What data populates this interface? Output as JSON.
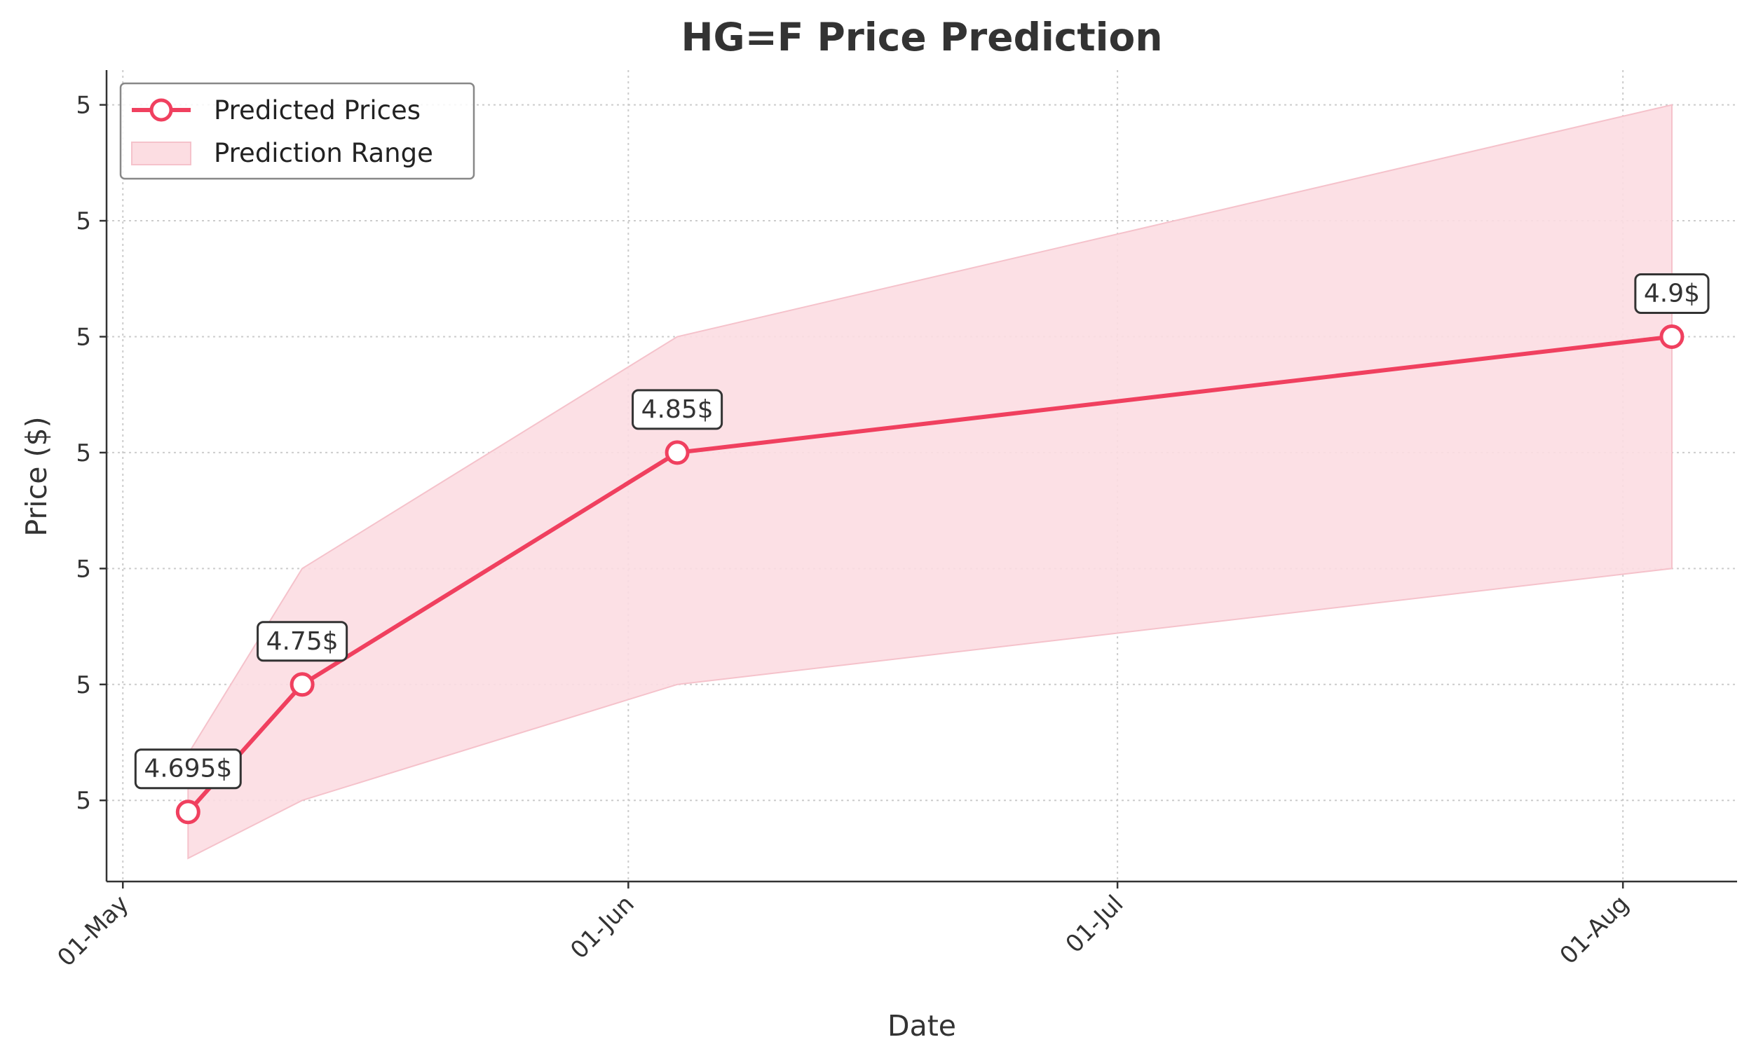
{
  "chart_data": {
    "type": "line",
    "title": "HG=F Price Prediction",
    "xlabel": "Date",
    "ylabel": "Price ($)",
    "x_tick_labels": [
      {
        "date": "2025-05-01",
        "label": "01-May"
      },
      {
        "date": "2025-06-01",
        "label": "01-Jun"
      },
      {
        "date": "2025-07-01",
        "label": "01-Jul"
      },
      {
        "date": "2025-08-01",
        "label": "01-Aug"
      }
    ],
    "y_tick_labels": [
      {
        "value": 4.7,
        "label": "5"
      },
      {
        "value": 4.75,
        "label": "5"
      },
      {
        "value": 4.8,
        "label": "5"
      },
      {
        "value": 4.85,
        "label": "5"
      },
      {
        "value": 4.9,
        "label": "5"
      },
      {
        "value": 4.95,
        "label": "5"
      },
      {
        "value": 5.0,
        "label": "5"
      }
    ],
    "xlim": [
      "2025-04-30",
      "2025-08-08"
    ],
    "ylim": [
      4.665,
      5.015
    ],
    "grid": true,
    "legend_position": "top-left",
    "series": [
      {
        "name": "Predicted Prices",
        "color": "#f0405f",
        "points": [
          {
            "x": "2025-05-05",
            "y": 4.695,
            "label": "4.695$"
          },
          {
            "x": "2025-05-12",
            "y": 4.75,
            "label": "4.75$"
          },
          {
            "x": "2025-06-04",
            "y": 4.85,
            "label": "4.85$"
          },
          {
            "x": "2025-08-04",
            "y": 4.9,
            "label": "4.9$"
          }
        ]
      }
    ],
    "range": {
      "name": "Prediction Range",
      "color": "#fcdde2",
      "x": [
        "2025-05-05",
        "2025-05-12",
        "2025-06-04",
        "2025-08-04"
      ],
      "lower": [
        4.675,
        4.7,
        4.75,
        4.8
      ],
      "upper": [
        4.72,
        4.8,
        4.9,
        5.0
      ]
    }
  }
}
